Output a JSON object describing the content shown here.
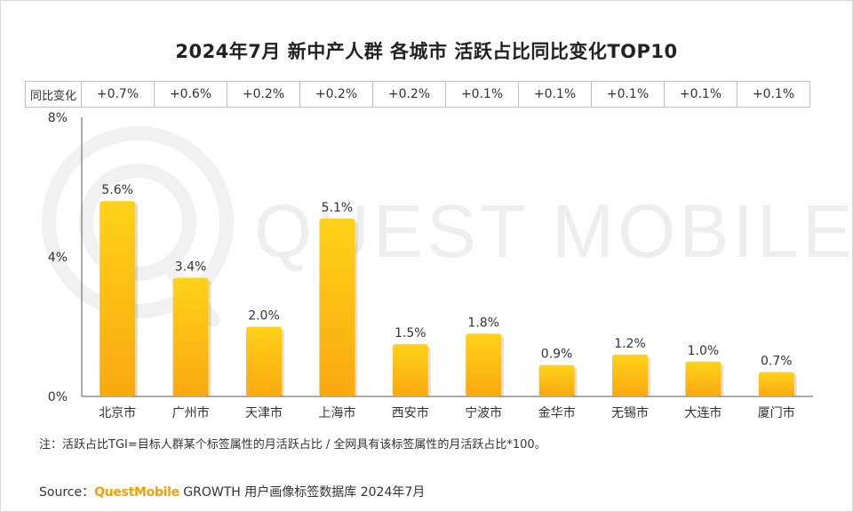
{
  "chart_data": {
    "type": "bar",
    "title": "2024年7月 新中产人群 各城市 活跃占比同比变化TOP10",
    "categories": [
      "北京市",
      "广州市",
      "天津市",
      "上海市",
      "西安市",
      "宁波市",
      "金华市",
      "无锡市",
      "大连市",
      "厦门市"
    ],
    "values": [
      5.6,
      3.4,
      2.0,
      5.1,
      1.5,
      1.8,
      0.9,
      1.2,
      1.0,
      0.7
    ],
    "value_labels": [
      "5.6%",
      "3.4%",
      "2.0%",
      "5.1%",
      "1.5%",
      "1.8%",
      "0.9%",
      "1.2%",
      "1.0%",
      "0.7%"
    ],
    "yoy_header": "同比变化",
    "yoy": [
      "+0.7%",
      "+0.6%",
      "+0.2%",
      "+0.2%",
      "+0.2%",
      "+0.1%",
      "+0.1%",
      "+0.1%",
      "+0.1%",
      "+0.1%"
    ],
    "ylim": [
      0,
      8
    ],
    "yticks": [
      "0%",
      "4%",
      "8%"
    ],
    "ytick_values": [
      0,
      4,
      8
    ],
    "xlabel": "",
    "ylabel": "",
    "colors": {
      "bar_top": "#ffd21a",
      "bar_bottom": "#f9a90f",
      "axis": "#595959"
    }
  },
  "watermark": "QUEST MOBILE",
  "note": "注：活跃占比TGI=目标人群某个标签属性的月活跃占比 / 全网具有该标签属性的月活跃占比*100。",
  "source": {
    "prefix": "Source：",
    "brand": "QuestMobile",
    "text": " GROWTH 用户画像标签数据库 2024年7月"
  }
}
